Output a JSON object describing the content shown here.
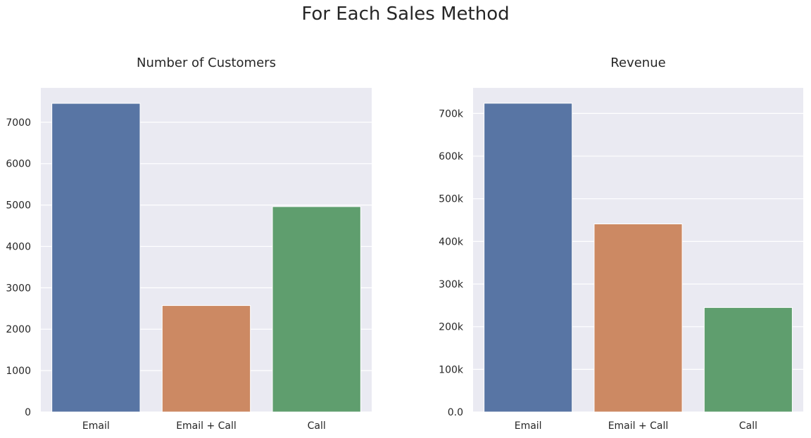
{
  "figure": {
    "title": "For Each Sales Method"
  },
  "chart_data": [
    {
      "type": "bar",
      "title": "Number of Customers",
      "xlabel": "",
      "ylabel": "",
      "categories": [
        "Email",
        "Email + Call",
        "Call"
      ],
      "values": [
        7456,
        2572,
        4962
      ],
      "ylim": [
        0,
        7830
      ],
      "yticks": [
        0,
        1000,
        2000,
        3000,
        4000,
        5000,
        6000,
        7000
      ],
      "ytick_labels": [
        "0",
        "1000",
        "2000",
        "3000",
        "4000",
        "5000",
        "6000",
        "7000"
      ],
      "colors": [
        "#5875a4",
        "#cc8963",
        "#5f9e6e"
      ],
      "grid": true,
      "background": "#eaeaf2"
    },
    {
      "type": "bar",
      "title": "Revenue",
      "xlabel": "",
      "ylabel": "",
      "categories": [
        "Email",
        "Email + Call",
        "Call"
      ],
      "values": [
        724000,
        441000,
        245000
      ],
      "ylim": [
        0,
        760000
      ],
      "yticks": [
        0,
        100000,
        200000,
        300000,
        400000,
        500000,
        600000,
        700000
      ],
      "ytick_labels": [
        "0.0",
        "100k",
        "200k",
        "300k",
        "400k",
        "500k",
        "600k",
        "700k"
      ],
      "colors": [
        "#5875a4",
        "#cc8963",
        "#5f9e6e"
      ],
      "grid": true,
      "background": "#eaeaf2"
    }
  ]
}
